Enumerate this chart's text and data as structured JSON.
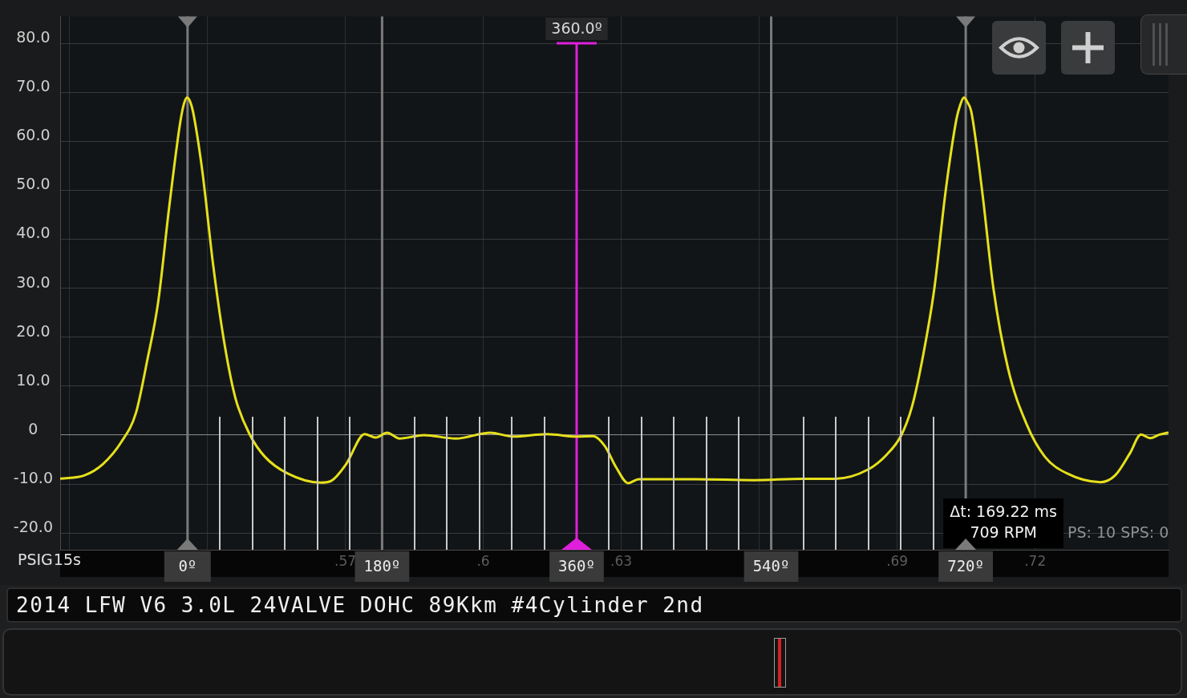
{
  "chart_data": {
    "type": "line",
    "title": "2014 LFW V6 3.0L 24VALVE DOHC 89Kkm #4Cylinder 2nd",
    "xlabel": "15s",
    "ylabel": "PSIG",
    "x": [
      0.508,
      0.5133,
      0.5173,
      0.5213,
      0.5245,
      0.5269,
      0.5293,
      0.5317,
      0.5341,
      0.5349,
      0.5356,
      0.5363,
      0.5369,
      0.5389,
      0.5413,
      0.5437,
      0.5461,
      0.5493,
      0.5525,
      0.5574,
      0.5646,
      0.567,
      0.5702,
      0.5742,
      0.5766,
      0.5791,
      0.5818,
      0.5871,
      0.594,
      0.6015,
      0.6065,
      0.6139,
      0.6202,
      0.6239,
      0.6264,
      0.6289,
      0.6315,
      0.6338,
      0.6463,
      0.6588,
      0.6693,
      0.6765,
      0.6837,
      0.6877,
      0.6909,
      0.6933,
      0.6957,
      0.6981,
      0.7005,
      0.7029,
      0.7037,
      0.7045,
      0.7053,
      0.7061,
      0.7085,
      0.7109,
      0.7141,
      0.7181,
      0.7221,
      0.7269,
      0.7342,
      0.7374,
      0.7406,
      0.743,
      0.745,
      0.747,
      0.7488
    ],
    "series": [
      {
        "color": "#e6e01c",
        "values": [
          -8.9,
          -8.2,
          -5.9,
          -1.4,
          4.6,
          15.1,
          27.1,
          46.5,
          63.8,
          67.6,
          68.9,
          68.0,
          66.0,
          54.0,
          34.5,
          18.8,
          7.6,
          0,
          -4.4,
          -7.8,
          -9.7,
          -9.3,
          -5.9,
          0.2,
          -0.5,
          0.5,
          -0.7,
          0,
          -0.7,
          0.5,
          -0.3,
          0.2,
          -0.3,
          -0.2,
          -2.2,
          -6.6,
          -9.8,
          -9.0,
          -9.0,
          -9.2,
          -8.9,
          -8.9,
          -7.0,
          -4.0,
          0,
          6.1,
          16.6,
          30.1,
          49.6,
          64.6,
          67.4,
          68.9,
          67.9,
          66.1,
          49.6,
          30.1,
          13.6,
          2.3,
          -4.4,
          -7.8,
          -9.6,
          -8.2,
          -3.7,
          0.1,
          -0.6,
          0.1,
          0.5
        ]
      }
    ],
    "xlim": [
      0.508,
      0.749
    ],
    "xticks": [
      {
        "value": 0.51,
        "label": null
      },
      {
        "value": 0.54,
        "label": null
      },
      {
        "value": 0.57,
        "label": ".57"
      },
      {
        "value": 0.6,
        "label": ".6"
      },
      {
        "value": 0.63,
        "label": ".63"
      },
      {
        "value": 0.66,
        "label": null
      },
      {
        "value": 0.69,
        "label": ".69"
      },
      {
        "value": 0.72,
        "label": ".72"
      }
    ],
    "ylim": [
      -23.4,
      85.5
    ],
    "yticks": [
      {
        "value": -20,
        "label": "-20.0"
      },
      {
        "value": -10,
        "label": "-10.0"
      },
      0,
      {
        "value": 10,
        "label": "10.0"
      },
      {
        "value": 20,
        "label": "20.0"
      },
      {
        "value": 30,
        "label": "30.0"
      },
      {
        "value": 40,
        "label": "40.0"
      },
      {
        "value": 50,
        "label": "50.0"
      },
      {
        "value": 60,
        "label": "60.0"
      },
      {
        "value": 70,
        "label": "70.0"
      },
      {
        "value": 80,
        "label": "80.0"
      }
    ],
    "grid": true,
    "marker": "none",
    "line_style": "solid",
    "ref_lines": [
      {
        "axis": "x",
        "value": 0.5357,
        "color": "#7a7a7a"
      },
      {
        "axis": "x",
        "value": 0.578,
        "color": "#7a7a7a"
      },
      {
        "axis": "x",
        "value": 0.6626,
        "color": "#7a7a7a"
      },
      {
        "axis": "x",
        "value": 0.7049,
        "color": "#7a7a7a"
      },
      {
        "axis": "x",
        "value": 0.6203,
        "color": "#e01fdc"
      }
    ],
    "annotations": [
      {
        "text": "0º",
        "x": 0.5357,
        "y": -23.4
      },
      {
        "text": "180º",
        "x": 0.578,
        "y": -23.4
      },
      {
        "text": "360º",
        "x": 0.6203,
        "y": -23.4
      },
      {
        "text": "540º",
        "x": 0.6626,
        "y": -23.4
      },
      {
        "text": "720º",
        "x": 0.7049,
        "y": -23.4
      },
      {
        "text": "360.0º",
        "x": 0.6203,
        "y": 80
      },
      "Δt: 169.22 ms",
      "709 RPM",
      "PS: 10 SPS: 0"
    ]
  }
}
